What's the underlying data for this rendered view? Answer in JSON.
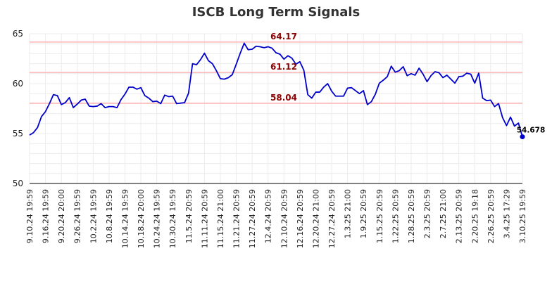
{
  "chart_data": {
    "type": "line",
    "title": "ISCB Long Term Signals",
    "xlabel": "",
    "ylabel": "",
    "ylim": [
      50,
      65
    ],
    "yticks": [
      50,
      55,
      60,
      65
    ],
    "grid": true,
    "xticks": [
      "9.10.24 19:59",
      "9.16.24 19:59",
      "9.20.24 20:00",
      "9.26.24 19:59",
      "10.2.24 19:59",
      "10.8.24 19:59",
      "10.14.24 19:59",
      "10.18.24 20:00",
      "10.24.24 19:59",
      "10.30.24 19:59",
      "11.5.24 20:59",
      "11.11.24 20:59",
      "11.15.24 21:00",
      "11.21.24 20:59",
      "11.27.24 20:59",
      "12.4.24 20:59",
      "12.10.24 20:59",
      "12.16.24 20:59",
      "12.20.24 21:00",
      "12.27.24 20:59",
      "1.3.25 21:00",
      "1.9.25 20:59",
      "1.15.25 20:59",
      "1.22.25 20:59",
      "1.28.25 20:59",
      "2.3.25 20:59",
      "2.7.25 21:00",
      "2.13.25 20:59",
      "2.20.25 19:18",
      "2.26.25 20:59",
      "3.4.25 17:29",
      "3.10.25 19:59"
    ],
    "reference_lines": [
      {
        "value": 64.17,
        "label": "64.17"
      },
      {
        "value": 61.12,
        "label": "61.12"
      },
      {
        "value": 58.04,
        "label": "58.04"
      }
    ],
    "last_value": {
      "value": 54.678,
      "label": "54.678"
    },
    "series": [
      {
        "color": "#0000cc",
        "values": [
          54.85,
          55.1,
          55.6,
          56.7,
          57.2,
          58.0,
          58.9,
          58.8,
          57.9,
          58.1,
          58.6,
          57.6,
          57.95,
          58.35,
          58.45,
          57.75,
          57.7,
          57.75,
          58.0,
          57.6,
          57.7,
          57.7,
          57.6,
          58.4,
          58.95,
          59.65,
          59.65,
          59.45,
          59.6,
          58.8,
          58.55,
          58.2,
          58.25,
          58.0,
          58.85,
          58.7,
          58.75,
          58.0,
          58.05,
          58.1,
          59.05,
          62.0,
          61.9,
          62.4,
          63.05,
          62.3,
          62.0,
          61.3,
          60.5,
          60.45,
          60.6,
          60.9,
          61.95,
          63.05,
          64.05,
          63.4,
          63.45,
          63.75,
          63.7,
          63.6,
          63.7,
          63.55,
          63.1,
          62.95,
          62.45,
          62.8,
          62.55,
          61.95,
          62.2,
          61.35,
          58.9,
          58.55,
          59.15,
          59.15,
          59.65,
          60.0,
          59.25,
          58.75,
          58.75,
          58.75,
          59.55,
          59.6,
          59.3,
          59.0,
          59.3,
          57.9,
          58.2,
          58.95,
          60.05,
          60.35,
          60.7,
          61.75,
          61.15,
          61.3,
          61.7,
          60.8,
          61.0,
          60.85,
          61.55,
          60.95,
          60.2,
          60.8,
          61.2,
          61.1,
          60.6,
          60.85,
          60.45,
          60.05,
          60.7,
          60.75,
          61.05,
          60.95,
          60.05,
          61.05,
          58.55,
          58.3,
          58.35,
          57.7,
          58.0,
          56.6,
          55.8,
          56.65,
          55.75,
          56.05,
          54.678
        ]
      }
    ]
  }
}
